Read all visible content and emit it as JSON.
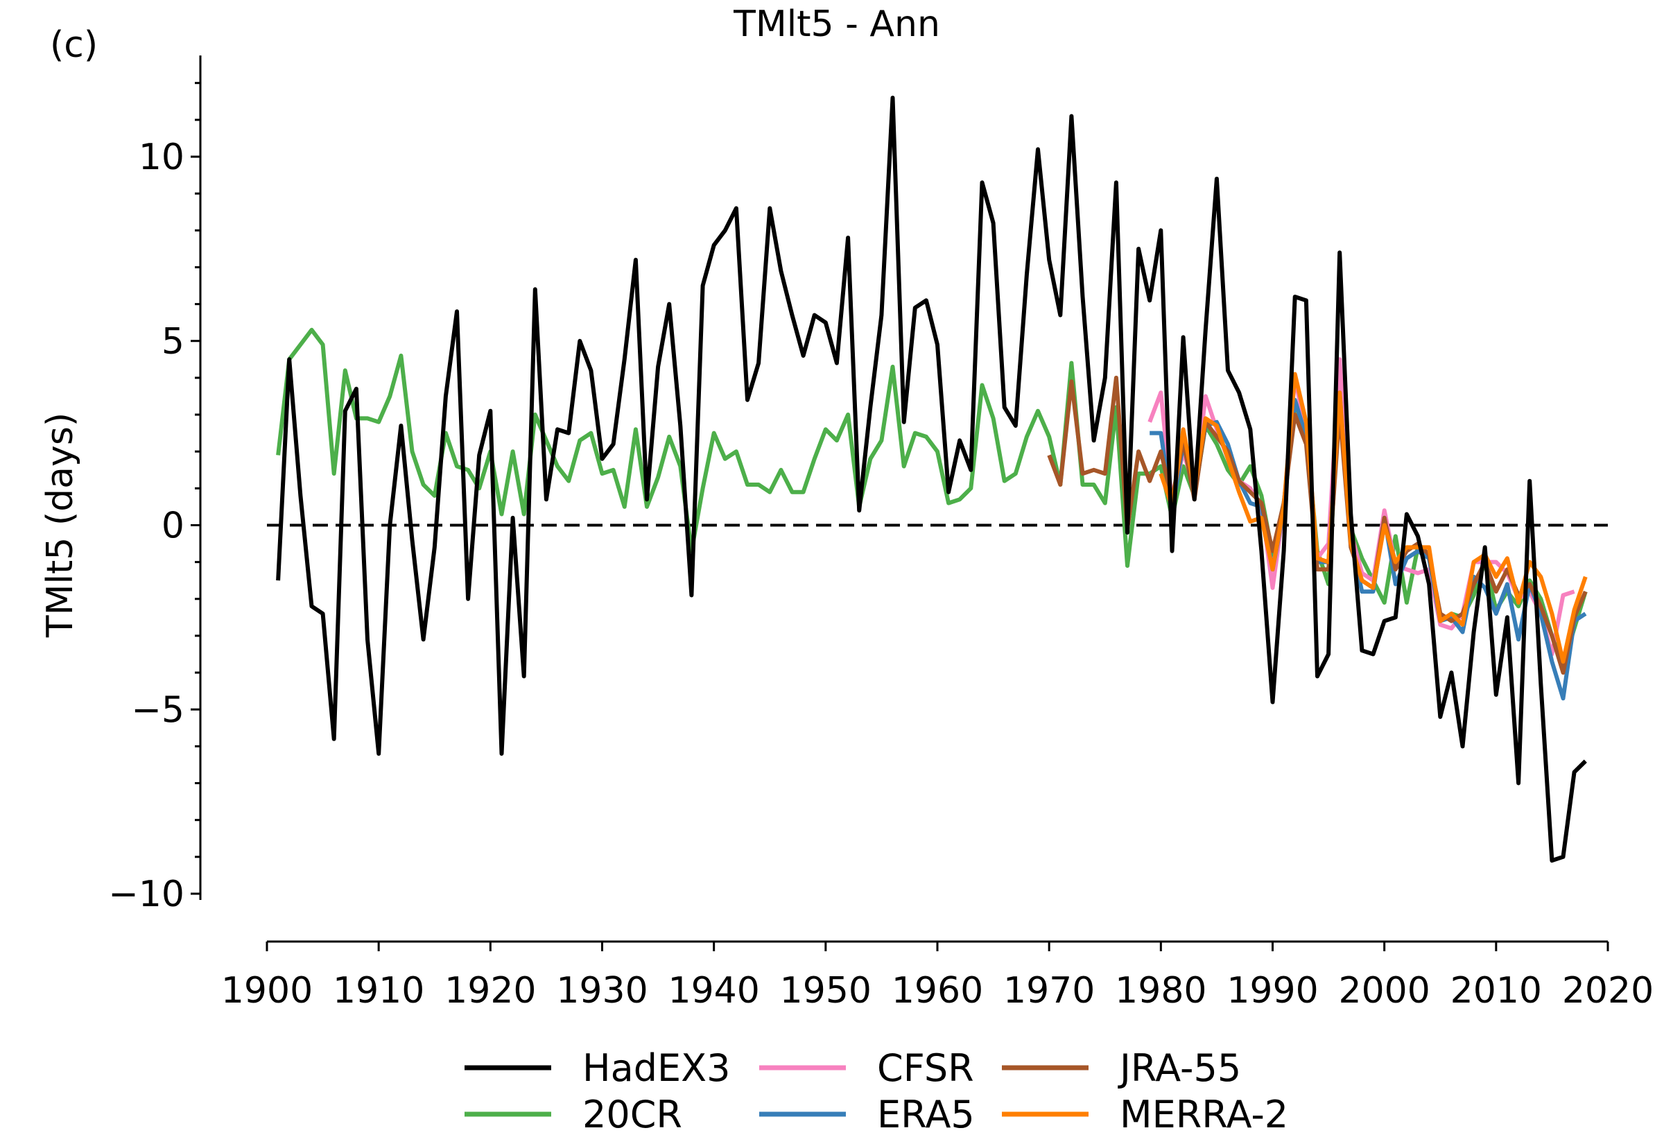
{
  "chart_data": {
    "type": "line",
    "panel_label": "(c)",
    "title": "TMlt5 - Ann",
    "xlabel": "",
    "ylabel": "TMlt5 (days)",
    "xlim": [
      1900,
      2020
    ],
    "ylim": [
      -11,
      12.5
    ],
    "x_ticks": [
      1900,
      1910,
      1920,
      1930,
      1940,
      1950,
      1960,
      1970,
      1980,
      1990,
      2000,
      2010,
      2020
    ],
    "y_ticks": [
      -10,
      -5,
      0,
      5,
      10
    ],
    "y_tick_labels": [
      "−10",
      "−5",
      "0",
      "5",
      "10"
    ],
    "zero_line": true,
    "grid": false,
    "legend_position": "bottom-center",
    "series": [
      {
        "name": "20CR",
        "color": "#4daf4a",
        "x_start": 1901,
        "values": [
          1.9,
          4.5,
          4.9,
          5.3,
          4.9,
          1.4,
          4.2,
          2.9,
          2.9,
          2.8,
          3.5,
          4.6,
          2.0,
          1.1,
          0.8,
          2.5,
          1.6,
          1.5,
          1.0,
          2.0,
          0.3,
          2.0,
          0.3,
          3.0,
          2.3,
          1.6,
          1.2,
          2.3,
          2.5,
          1.4,
          1.5,
          0.5,
          2.6,
          0.5,
          1.3,
          2.4,
          1.6,
          -0.7,
          1.0,
          2.5,
          1.8,
          2.0,
          1.1,
          1.1,
          0.9,
          1.5,
          0.9,
          0.9,
          1.8,
          2.6,
          2.3,
          3.0,
          0.5,
          1.8,
          2.3,
          4.3,
          1.6,
          2.5,
          2.4,
          2.0,
          0.6,
          0.7,
          1.0,
          3.8,
          2.9,
          1.2,
          1.4,
          2.4,
          3.1,
          2.4,
          1.1,
          4.4,
          1.1,
          1.1,
          0.6,
          3.2,
          -1.1,
          1.4,
          1.4,
          1.6,
          0.2,
          1.6,
          0.8,
          2.7,
          2.2,
          1.5,
          1.1,
          1.6,
          0.8,
          -0.8,
          0.6,
          3.3,
          2.5,
          -0.7,
          -1.6,
          3.7,
          -0.1,
          -0.9,
          -1.5,
          -2.1,
          -0.3,
          -2.1,
          -0.6,
          -0.9,
          -2.6,
          -2.4,
          -2.5,
          -1.9,
          -1.0,
          -2.3,
          -1.8,
          -2.2,
          -1.5,
          -2.0,
          -3.0,
          -3.8,
          -2.8,
          -1.8
        ]
      },
      {
        "name": "CFSR",
        "color": "#f781bf",
        "x_start": 1979,
        "values": [
          2.8,
          3.6,
          0.6,
          2.0,
          1.0,
          3.5,
          2.6,
          1.8,
          1.2,
          1.0,
          0.5,
          -1.7,
          0.5,
          4.0,
          2.5,
          -0.9,
          -0.5,
          4.5,
          -0.2,
          -1.3,
          -1.5,
          0.4,
          -1.1,
          -1.2,
          -1.3,
          -1.2,
          -2.7,
          -2.8,
          -2.4,
          -1.0,
          -1.0,
          -1.0,
          -1.3,
          -2.0,
          -1.8,
          -2.4,
          -3.5,
          -1.9,
          -1.8
        ]
      },
      {
        "name": "ERA5",
        "color": "#377eb8",
        "x_start": 1979,
        "values": [
          2.5,
          2.5,
          0.4,
          2.2,
          0.9,
          2.7,
          2.8,
          2.2,
          1.2,
          0.6,
          0.5,
          -1.2,
          0.4,
          3.4,
          2.4,
          -1.0,
          -1.0,
          3.6,
          -0.4,
          -1.8,
          -1.8,
          0.2,
          -1.6,
          -0.9,
          -0.7,
          -0.9,
          -2.6,
          -2.5,
          -2.9,
          -1.4,
          -1.7,
          -2.4,
          -1.6,
          -3.1,
          -1.6,
          -2.4,
          -3.7,
          -4.7,
          -2.6,
          -2.4
        ]
      },
      {
        "name": "JRA-55",
        "color": "#a65628",
        "x_start": 1970,
        "values": [
          1.9,
          1.1,
          3.9,
          1.4,
          1.5,
          1.4,
          4.0,
          -0.1,
          2.0,
          1.2,
          2.0,
          0.7,
          2.3,
          0.7,
          2.8,
          2.4,
          2.0,
          1.2,
          0.9,
          0.6,
          -0.7,
          0.6,
          3.0,
          2.2,
          -1.2,
          -1.2,
          3.1,
          -0.6,
          -1.5,
          -1.7,
          0.2,
          -1.2,
          -0.7,
          -0.5,
          -0.8,
          -2.4,
          -2.6,
          -2.4,
          -1.6,
          -1.0,
          -1.8,
          -1.2,
          -1.9,
          -1.6,
          -2.2,
          -3.0,
          -4.0,
          -2.5,
          -1.8
        ]
      },
      {
        "name": "MERRA-2",
        "color": "#ff7f00",
        "x_start": 1980,
        "values": [
          1.4,
          0.5,
          2.6,
          1.0,
          2.9,
          2.7,
          1.8,
          0.9,
          0.1,
          0.2,
          -1.2,
          0.5,
          4.1,
          2.8,
          -0.9,
          -1.0,
          3.6,
          -0.5,
          -1.5,
          -1.7,
          0.0,
          -1.0,
          -0.6,
          -0.6,
          -0.6,
          -2.6,
          -2.4,
          -2.7,
          -1.0,
          -0.8,
          -1.4,
          -0.9,
          -2.1,
          -1.0,
          -1.4,
          -2.4,
          -3.7,
          -2.3,
          -1.4
        ]
      },
      {
        "name": "HadEX3",
        "color": "#000000",
        "x_start": 1901,
        "values": [
          -1.5,
          4.5,
          0.8,
          -2.2,
          -2.4,
          -5.8,
          3.1,
          3.7,
          -3.1,
          -6.2,
          0.0,
          2.7,
          -0.4,
          -3.1,
          -0.6,
          3.5,
          5.8,
          -2.0,
          1.9,
          3.1,
          -6.2,
          0.2,
          -4.1,
          6.4,
          0.7,
          2.6,
          2.5,
          5.0,
          4.2,
          1.8,
          2.2,
          4.5,
          7.2,
          0.7,
          4.3,
          6.0,
          2.7,
          -1.9,
          6.5,
          7.6,
          8.0,
          8.6,
          3.4,
          4.4,
          8.6,
          6.9,
          5.7,
          4.6,
          5.7,
          5.5,
          4.4,
          7.8,
          0.4,
          3.2,
          5.7,
          11.6,
          2.8,
          5.9,
          6.1,
          4.9,
          0.9,
          2.3,
          1.5,
          9.3,
          8.2,
          3.2,
          2.7,
          6.8,
          10.2,
          7.2,
          5.7,
          11.1,
          6.2,
          2.3,
          4.0,
          9.3,
          -0.2,
          7.5,
          6.1,
          8.0,
          -0.7,
          5.1,
          0.7,
          5.3,
          9.4,
          4.2,
          3.6,
          2.6,
          -0.7,
          -4.8,
          -0.7,
          6.2,
          6.1,
          -4.1,
          -3.5,
          7.4,
          0.3,
          -3.4,
          -3.5,
          -2.6,
          -2.5,
          0.3,
          -0.3,
          -1.6,
          -5.2,
          -4.0,
          -6.0,
          -2.9,
          -0.6,
          -4.6,
          -2.5,
          -7.0,
          1.2,
          -4.3,
          -9.1,
          -9.0,
          -6.7,
          -6.4
        ]
      }
    ]
  },
  "legend": {
    "columns": [
      [
        "HadEX3",
        "20CR"
      ],
      [
        "CFSR",
        "ERA5"
      ],
      [
        "JRA-55",
        "MERRA-2"
      ]
    ],
    "colors": {
      "HadEX3": "#000000",
      "20CR": "#4daf4a",
      "CFSR": "#f781bf",
      "ERA5": "#377eb8",
      "JRA-55": "#a65628",
      "MERRA-2": "#ff7f00"
    }
  }
}
